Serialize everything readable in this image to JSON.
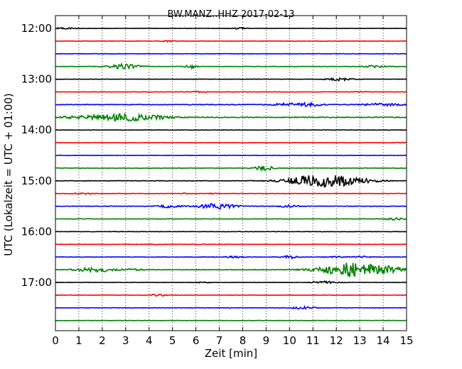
{
  "chart_data": {
    "type": "line",
    "chart_kind": "helicorder",
    "title": "BW.MANZ..HHZ 2017-02-13",
    "xlabel": "Zeit  [min]",
    "ylabel": "UTC (Lokalzeit = UTC + 01:00)",
    "xlim": [
      0,
      15
    ],
    "x_ticks": [
      0,
      1,
      2,
      3,
      4,
      5,
      6,
      7,
      8,
      9,
      10,
      11,
      12,
      13,
      14,
      15
    ],
    "y_tick_labels": [
      "12:00",
      "13:00",
      "14:00",
      "15:00",
      "16:00",
      "17:00"
    ],
    "row_times": [
      "12:00",
      "12:15",
      "12:30",
      "12:45",
      "13:00",
      "13:15",
      "13:30",
      "13:45",
      "14:00",
      "14:15",
      "14:30",
      "14:45",
      "15:00",
      "15:15",
      "15:30",
      "15:45",
      "16:00",
      "16:15",
      "16:30",
      "16:45",
      "17:00",
      "17:15",
      "17:30",
      "17:45"
    ],
    "color_cycle": [
      "#000000",
      "#ff0000",
      "#0000ff",
      "#008000"
    ],
    "grid": "vertical-dotted",
    "rows": [
      {
        "time": "12:00",
        "noise": 0.25,
        "events": [
          {
            "t": 0.4,
            "a": 1.0,
            "d": 0.5
          },
          {
            "t": 7.9,
            "a": 1.0,
            "d": 0.3
          }
        ]
      },
      {
        "time": "12:15",
        "noise": 0.25,
        "events": [
          {
            "t": 4.9,
            "a": 0.8,
            "d": 0.4
          }
        ]
      },
      {
        "time": "12:30",
        "noise": 0.3,
        "events": []
      },
      {
        "time": "12:45",
        "noise": 0.3,
        "events": [
          {
            "t": 2.9,
            "a": 3.5,
            "d": 0.7
          },
          {
            "t": 5.8,
            "a": 2.5,
            "d": 0.25
          },
          {
            "t": 13.6,
            "a": 1.5,
            "d": 0.5
          }
        ]
      },
      {
        "time": "13:00",
        "noise": 0.25,
        "events": [
          {
            "t": 12.1,
            "a": 2.0,
            "d": 0.5
          }
        ]
      },
      {
        "time": "13:15",
        "noise": 0.25,
        "events": [
          {
            "t": 6.1,
            "a": 0.8,
            "d": 0.3
          },
          {
            "t": 13.0,
            "a": 0.6,
            "d": 0.3
          }
        ]
      },
      {
        "time": "13:30",
        "noise": 0.45,
        "events": [
          {
            "t": 10.1,
            "a": 2.2,
            "d": 0.8
          },
          {
            "t": 11.0,
            "a": 1.2,
            "d": 0.5
          },
          {
            "t": 14.0,
            "a": 1.8,
            "d": 0.8
          }
        ]
      },
      {
        "time": "13:45",
        "noise": 0.6,
        "events": [
          {
            "t": 1.4,
            "a": 1.5,
            "d": 1.5
          },
          {
            "t": 3.0,
            "a": 4.5,
            "d": 1.2
          },
          {
            "t": 4.6,
            "a": 1.2,
            "d": 0.6
          }
        ]
      },
      {
        "time": "14:00",
        "noise": 0.25,
        "events": []
      },
      {
        "time": "14:15",
        "noise": 0.25,
        "events": [
          {
            "t": 14.8,
            "a": 0.6,
            "d": 0.3
          }
        ]
      },
      {
        "time": "14:30",
        "noise": 0.3,
        "events": []
      },
      {
        "time": "14:45",
        "noise": 0.3,
        "events": [
          {
            "t": 8.8,
            "a": 2.5,
            "d": 0.35
          },
          {
            "t": 9.1,
            "a": 1.5,
            "d": 0.25
          }
        ]
      },
      {
        "time": "15:00",
        "noise": 0.35,
        "events": [
          {
            "t": 11.1,
            "a": 8.0,
            "d": 1.2
          },
          {
            "t": 12.3,
            "a": 3.0,
            "d": 0.8
          },
          {
            "t": 13.1,
            "a": 2.2,
            "d": 0.8
          }
        ]
      },
      {
        "time": "15:15",
        "noise": 0.25,
        "events": [
          {
            "t": 1.2,
            "a": 0.9,
            "d": 0.4
          },
          {
            "t": 5.5,
            "a": 0.6,
            "d": 0.3
          },
          {
            "t": 6.7,
            "a": 0.6,
            "d": 0.3
          }
        ]
      },
      {
        "time": "15:30",
        "noise": 0.3,
        "events": [
          {
            "t": 4.9,
            "a": 2.0,
            "d": 0.5
          },
          {
            "t": 6.9,
            "a": 3.8,
            "d": 0.8
          },
          {
            "t": 10.0,
            "a": 1.6,
            "d": 0.4
          }
        ]
      },
      {
        "time": "15:45",
        "noise": 0.3,
        "events": [
          {
            "t": 14.5,
            "a": 1.5,
            "d": 0.4
          }
        ]
      },
      {
        "time": "16:00",
        "noise": 0.25,
        "events": []
      },
      {
        "time": "16:15",
        "noise": 0.25,
        "events": [
          {
            "t": 4.4,
            "a": 0.5,
            "d": 0.3
          },
          {
            "t": 6.1,
            "a": 0.5,
            "d": 0.3
          }
        ]
      },
      {
        "time": "16:30",
        "noise": 0.3,
        "events": [
          {
            "t": 7.6,
            "a": 1.0,
            "d": 0.5
          },
          {
            "t": 10.0,
            "a": 2.0,
            "d": 0.3
          },
          {
            "t": 12.0,
            "a": 0.8,
            "d": 0.4
          },
          {
            "t": 13.0,
            "a": 1.0,
            "d": 0.4
          }
        ]
      },
      {
        "time": "16:45",
        "noise": 0.4,
        "events": [
          {
            "t": 1.7,
            "a": 3.0,
            "d": 0.8
          },
          {
            "t": 3.3,
            "a": 1.2,
            "d": 0.4
          },
          {
            "t": 12.7,
            "a": 10.0,
            "d": 1.3
          },
          {
            "t": 14.3,
            "a": 2.5,
            "d": 0.6
          }
        ]
      },
      {
        "time": "17:00",
        "noise": 0.25,
        "events": [
          {
            "t": 6.3,
            "a": 0.7,
            "d": 0.3
          },
          {
            "t": 11.5,
            "a": 1.6,
            "d": 0.5
          }
        ]
      },
      {
        "time": "17:15",
        "noise": 0.25,
        "events": [
          {
            "t": 4.4,
            "a": 1.2,
            "d": 0.4
          }
        ]
      },
      {
        "time": "17:30",
        "noise": 0.25,
        "events": [
          {
            "t": 10.6,
            "a": 1.8,
            "d": 0.5
          }
        ]
      },
      {
        "time": "17:45",
        "noise": 0.25,
        "events": []
      }
    ]
  }
}
